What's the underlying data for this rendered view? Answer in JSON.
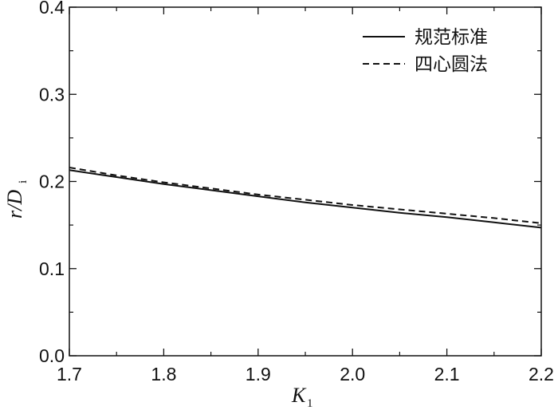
{
  "chart_data": {
    "type": "line",
    "xlabel": "K",
    "xlabel_sub": "1",
    "ylabel": "r/D",
    "ylabel_sub": "i",
    "xlim": [
      1.7,
      2.2
    ],
    "ylim": [
      0.0,
      0.4
    ],
    "xticks": [
      1.7,
      1.8,
      1.9,
      2.0,
      2.1,
      2.2
    ],
    "xtick_labels": [
      "1.7",
      "1.8",
      "1.9",
      "2.0",
      "2.1",
      "2.2"
    ],
    "yticks": [
      0.0,
      0.1,
      0.2,
      0.3,
      0.4
    ],
    "ytick_labels": [
      "0.0",
      "0.1",
      "0.2",
      "0.3",
      "0.4"
    ],
    "legend_position": "top-right",
    "series": [
      {
        "name": "规范标准",
        "style": "solid",
        "color": "#111111",
        "x": [
          1.7,
          1.75,
          1.8,
          1.85,
          1.9,
          1.95,
          2.0,
          2.05,
          2.1,
          2.15,
          2.2
        ],
        "y": [
          0.213,
          0.205,
          0.197,
          0.19,
          0.183,
          0.176,
          0.17,
          0.164,
          0.159,
          0.153,
          0.147
        ]
      },
      {
        "name": "四心圆法",
        "style": "dashed",
        "color": "#111111",
        "x": [
          1.7,
          1.75,
          1.8,
          1.85,
          1.9,
          1.95,
          2.0,
          2.05,
          2.1,
          2.15,
          2.2
        ],
        "y": [
          0.216,
          0.207,
          0.199,
          0.192,
          0.185,
          0.179,
          0.173,
          0.168,
          0.163,
          0.158,
          0.152
        ]
      }
    ]
  }
}
